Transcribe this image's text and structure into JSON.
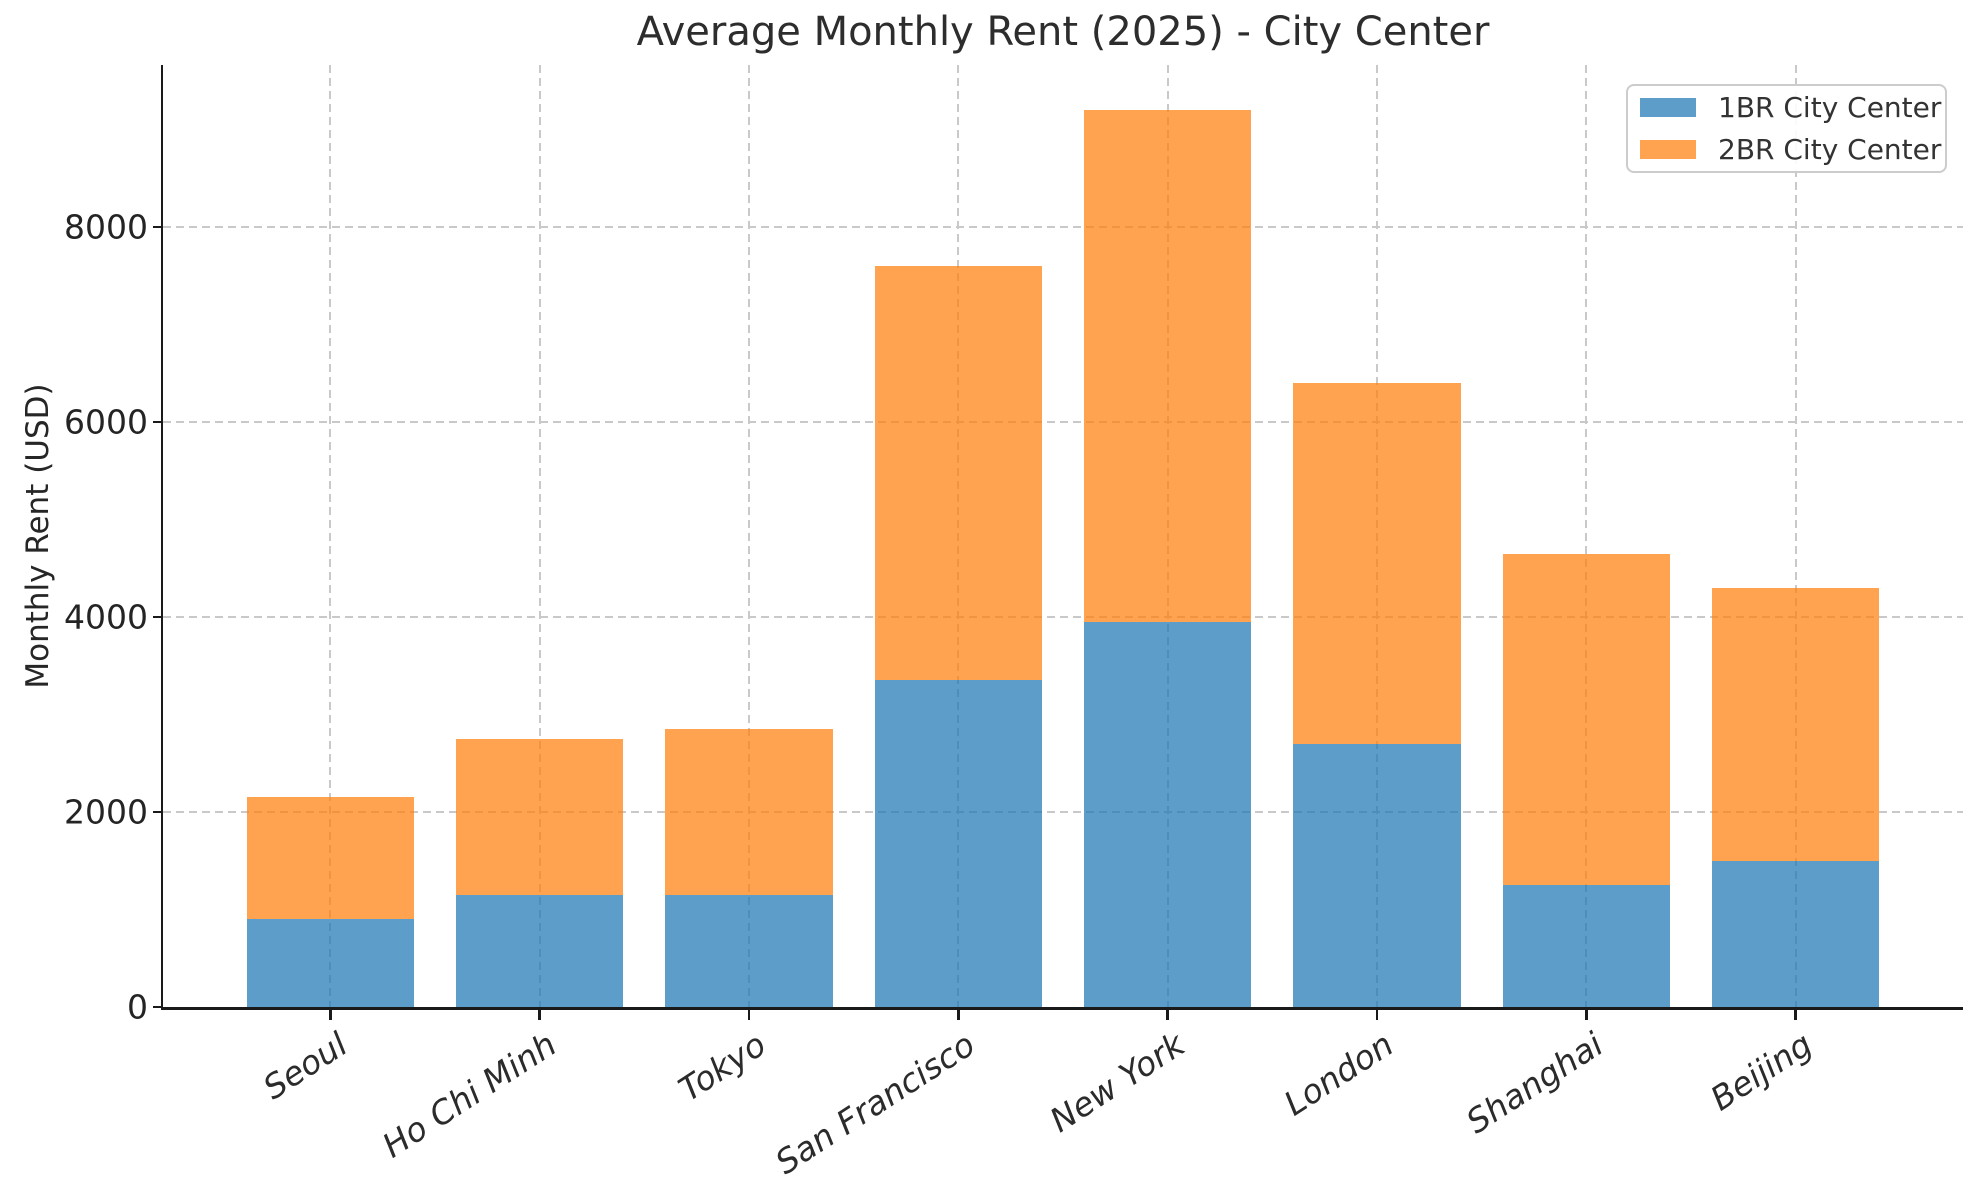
{
  "chart_data": {
    "type": "bar",
    "stacked": true,
    "title": "Average Monthly Rent (2025) - City Center",
    "xlabel": "",
    "ylabel": "Monthly Rent (USD)",
    "categories": [
      "Seoul",
      "Ho Chi Minh",
      "Tokyo",
      "San Francisco",
      "New York",
      "London",
      "Shanghai",
      "Beijing"
    ],
    "series": [
      {
        "name": "1BR City Center",
        "color": "#1f77b4",
        "values": [
          900,
          1150,
          1150,
          3350,
          3950,
          2700,
          1250,
          1500
        ]
      },
      {
        "name": "2BR City Center",
        "color": "#ff7f0e",
        "values": [
          1250,
          1600,
          1700,
          4250,
          5250,
          3700,
          3400,
          2800
        ]
      }
    ],
    "stack_totals": [
      2150,
      2750,
      2850,
      7600,
      9200,
      6400,
      4650,
      4300
    ],
    "y_ticks": [
      0,
      2000,
      4000,
      6000,
      8000
    ],
    "ylim": [
      0,
      9660
    ],
    "bar_alpha": 0.72,
    "bar_width_frac": 0.8,
    "grid": "both-dashed",
    "grid_color": "#c9c9c9",
    "axis_color": "#1a1a1a",
    "legend_position": "upper right"
  }
}
